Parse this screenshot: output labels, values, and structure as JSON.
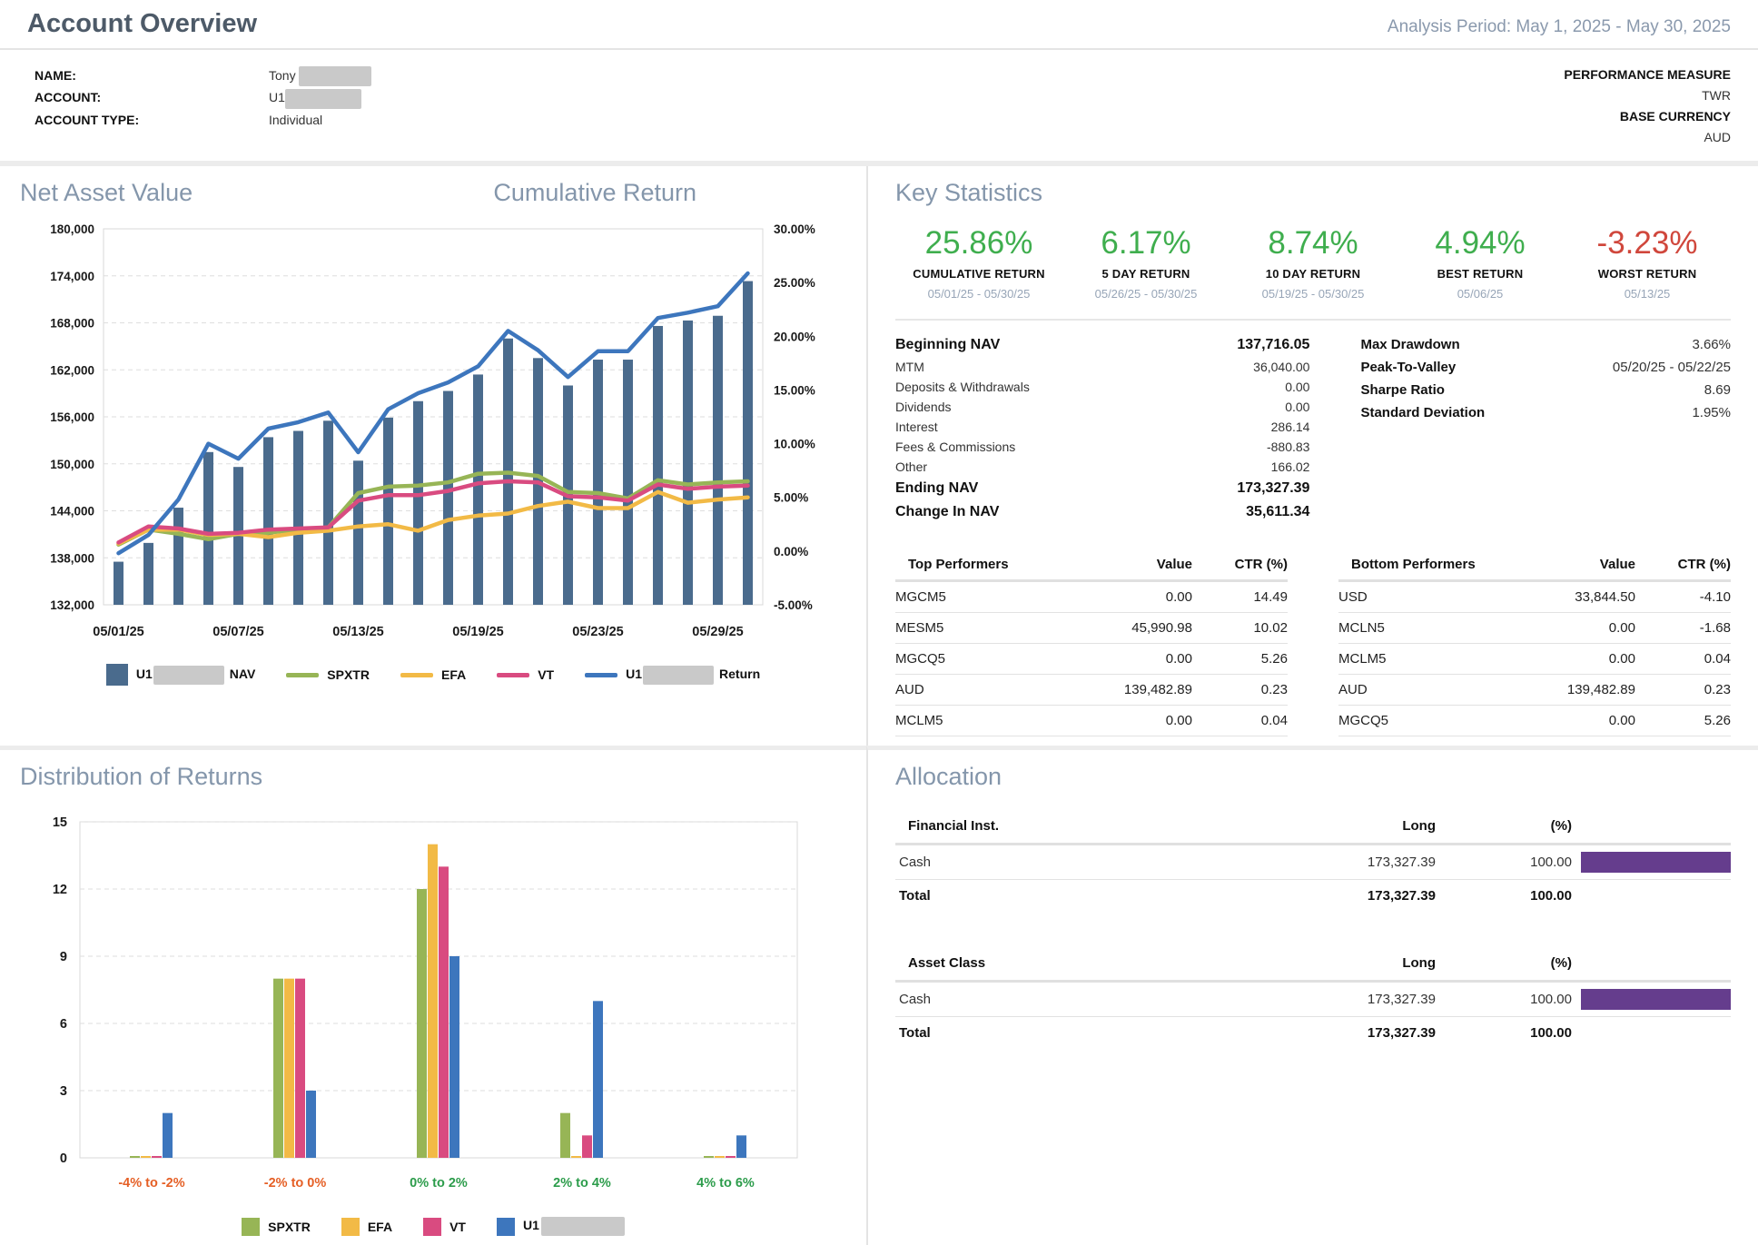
{
  "header": {
    "title": "Account Overview",
    "analysis_period": "Analysis Period: May 1, 2025 - May 30, 2025"
  },
  "account": {
    "name_label": "NAME:",
    "name_value": "Tony",
    "account_label": "ACCOUNT:",
    "account_value": "U1",
    "type_label": "ACCOUNT TYPE:",
    "type_value": "Individual",
    "perf_label": "PERFORMANCE MEASURE",
    "perf_value": "TWR",
    "currency_label": "BASE CURRENCY",
    "currency_value": "AUD"
  },
  "nav_panel": {
    "title_left": "Net Asset Value",
    "title_right": "Cumulative Return",
    "legend": [
      {
        "prefix": "U1",
        "suffix": "NAV"
      },
      {
        "label": "SPXTR"
      },
      {
        "label": "EFA"
      },
      {
        "label": "VT"
      },
      {
        "prefix": "U1",
        "suffix": "Return"
      }
    ]
  },
  "key_stats": {
    "title": "Key Statistics",
    "green": "#3fae4e",
    "red": "#d0473c",
    "stats": [
      {
        "value": "25.86%",
        "label": "CUMULATIVE RETURN",
        "period": "05/01/25 - 05/30/25",
        "color": "#3fae4e"
      },
      {
        "value": "6.17%",
        "label": "5 DAY RETURN",
        "period": "05/26/25 - 05/30/25",
        "color": "#3fae4e"
      },
      {
        "value": "8.74%",
        "label": "10 DAY RETURN",
        "period": "05/19/25 - 05/30/25",
        "color": "#3fae4e"
      },
      {
        "value": "4.94%",
        "label": "BEST RETURN",
        "period": "05/06/25",
        "color": "#3fae4e"
      },
      {
        "value": "-3.23%",
        "label": "WORST RETURN",
        "period": "05/13/25",
        "color": "#d0473c"
      }
    ],
    "nav_summary": [
      {
        "label": "Beginning NAV",
        "value": "137,716.05"
      },
      {
        "label": "MTM",
        "value": "36,040.00"
      },
      {
        "label": "Deposits & Withdrawals",
        "value": "0.00"
      },
      {
        "label": "Dividends",
        "value": "0.00"
      },
      {
        "label": "Interest",
        "value": "286.14"
      },
      {
        "label": "Fees & Commissions",
        "value": "-880.83"
      },
      {
        "label": "Other",
        "value": "166.02"
      },
      {
        "label": "Ending NAV",
        "value": "173,327.39"
      },
      {
        "label": "Change In NAV",
        "value": "35,611.34"
      }
    ],
    "risk_stats": [
      {
        "label": "Max Drawdown",
        "value": "3.66%"
      },
      {
        "label": "Peak-To-Valley",
        "value": "05/20/25 - 05/22/25"
      },
      {
        "label": "Sharpe Ratio",
        "value": "8.69"
      },
      {
        "label": "Standard Deviation",
        "value": "1.95%"
      }
    ],
    "top_performers": {
      "title": "Top Performers",
      "col_value": "Value",
      "col_ctr": "CTR (%)",
      "rows": [
        {
          "symbol": "MGCM5",
          "value": "0.00",
          "ctr": "14.49"
        },
        {
          "symbol": "MESM5",
          "value": "45,990.98",
          "ctr": "10.02"
        },
        {
          "symbol": "MGCQ5",
          "value": "0.00",
          "ctr": "5.26"
        },
        {
          "symbol": "AUD",
          "value": "139,482.89",
          "ctr": "0.23"
        },
        {
          "symbol": "MCLM5",
          "value": "0.00",
          "ctr": "0.04"
        }
      ]
    },
    "bottom_performers": {
      "title": "Bottom Performers",
      "col_value": "Value",
      "col_ctr": "CTR (%)",
      "rows": [
        {
          "symbol": "USD",
          "value": "33,844.50",
          "ctr": "-4.10"
        },
        {
          "symbol": "MCLN5",
          "value": "0.00",
          "ctr": "-1.68"
        },
        {
          "symbol": "MCLM5",
          "value": "0.00",
          "ctr": "0.04"
        },
        {
          "symbol": "AUD",
          "value": "139,482.89",
          "ctr": "0.23"
        },
        {
          "symbol": "MGCQ5",
          "value": "0.00",
          "ctr": "5.26"
        }
      ]
    }
  },
  "distribution_panel": {
    "title": "Distribution of Returns",
    "legend": [
      {
        "label": "SPXTR"
      },
      {
        "label": "EFA"
      },
      {
        "label": "VT"
      },
      {
        "prefix": "U1"
      }
    ]
  },
  "allocation": {
    "title": "Allocation",
    "bar_color": "#653d8d",
    "tables": [
      {
        "h1": "Financial Inst.",
        "h2": "Long",
        "h3": "(%)",
        "row": {
          "name": "Cash",
          "long": "173,327.39",
          "pct": "100.00",
          "bar_pct": 100
        },
        "total": {
          "name": "Total",
          "long": "173,327.39",
          "pct": "100.00"
        }
      },
      {
        "h1": "Asset Class",
        "h2": "Long",
        "h3": "(%)",
        "row": {
          "name": "Cash",
          "long": "173,327.39",
          "pct": "100.00",
          "bar_pct": 100
        },
        "total": {
          "name": "Total",
          "long": "173,327.39",
          "pct": "100.00"
        }
      }
    ]
  },
  "chart_data": [
    {
      "type": "bar+line",
      "title": "Net Asset Value / Cumulative Return",
      "x": [
        "05/01/25",
        "05/02/25",
        "05/05/25",
        "05/06/25",
        "05/07/25",
        "05/08/25",
        "05/09/25",
        "05/12/25",
        "05/13/25",
        "05/14/25",
        "05/15/25",
        "05/16/25",
        "05/19/25",
        "05/20/25",
        "05/21/25",
        "05/22/25",
        "05/23/25",
        "05/26/25",
        "05/27/25",
        "05/28/25",
        "05/29/25",
        "05/30/25"
      ],
      "x_tick_labels": [
        "05/01/25",
        "05/07/25",
        "05/13/25",
        "05/19/25",
        "05/23/25",
        "05/29/25"
      ],
      "x_tick_indices": [
        0,
        4,
        8,
        12,
        16,
        20
      ],
      "left_axis": {
        "min": 132000,
        "max": 180000,
        "tick_step": 6000
      },
      "right_axis": {
        "min": -5,
        "max": 30,
        "tick_step": 5
      },
      "grid": true,
      "bars": {
        "name": "U1 NAV",
        "color": "#4a6b8d",
        "values": [
          137500,
          139900,
          144400,
          151500,
          149600,
          153400,
          154200,
          155500,
          150400,
          155900,
          158000,
          159300,
          161400,
          166000,
          163500,
          160000,
          163300,
          163300,
          167600,
          168300,
          168900,
          173327
        ]
      },
      "lines": [
        {
          "name": "SPXTR",
          "color": "#97b556",
          "axis": "right",
          "values": [
            0.6,
            2.0,
            1.6,
            1.1,
            1.6,
            1.7,
            2.0,
            2.2,
            5.4,
            6.0,
            6.1,
            6.4,
            7.2,
            7.3,
            7.0,
            5.5,
            5.4,
            4.9,
            6.6,
            6.2,
            6.4,
            6.5
          ]
        },
        {
          "name": "EFA",
          "color": "#f2ba46",
          "axis": "right",
          "values": [
            0.7,
            2.0,
            2.0,
            1.5,
            1.6,
            1.3,
            1.7,
            1.9,
            2.3,
            2.5,
            1.9,
            2.9,
            3.3,
            3.5,
            4.2,
            4.6,
            4.0,
            4.0,
            5.5,
            4.5,
            4.8,
            5.0
          ]
        },
        {
          "name": "VT",
          "color": "#d94b80",
          "axis": "right",
          "values": [
            0.8,
            2.3,
            2.1,
            1.6,
            1.7,
            2.0,
            2.1,
            2.2,
            4.7,
            5.2,
            5.2,
            5.6,
            6.3,
            6.5,
            6.4,
            5.1,
            5.0,
            4.7,
            6.2,
            5.8,
            6.0,
            6.1
          ]
        },
        {
          "name": "U1 Return",
          "color": "#3d76bd",
          "axis": "right",
          "values": [
            -0.2,
            1.5,
            4.8,
            10.0,
            8.6,
            11.4,
            12.0,
            12.9,
            9.2,
            13.2,
            14.7,
            15.7,
            17.2,
            20.5,
            18.7,
            16.2,
            18.6,
            18.6,
            21.7,
            22.2,
            22.8,
            25.86
          ]
        }
      ]
    },
    {
      "type": "bar",
      "title": "Distribution of Returns",
      "categories": [
        "-4% to -2%",
        "-2% to 0%",
        "0% to 2%",
        "2% to 4%",
        "4% to 6%"
      ],
      "category_colors": [
        "#e55f25",
        "#e55f25",
        "#2c9c4b",
        "#2c9c4b",
        "#2c9c4b"
      ],
      "series": [
        {
          "name": "SPXTR",
          "color": "#97b556",
          "values": [
            0,
            8,
            12,
            2,
            0
          ]
        },
        {
          "name": "EFA",
          "color": "#f2ba46",
          "values": [
            0,
            8,
            14,
            0,
            0
          ]
        },
        {
          "name": "VT",
          "color": "#d94b80",
          "values": [
            0,
            8,
            13,
            1,
            0
          ]
        },
        {
          "name": "U1",
          "color": "#3d76bd",
          "values": [
            2,
            3,
            9,
            7,
            1
          ]
        }
      ],
      "ylim": [
        0,
        15
      ],
      "yticks": [
        0,
        3,
        6,
        9,
        12,
        15
      ],
      "grid": true
    }
  ]
}
